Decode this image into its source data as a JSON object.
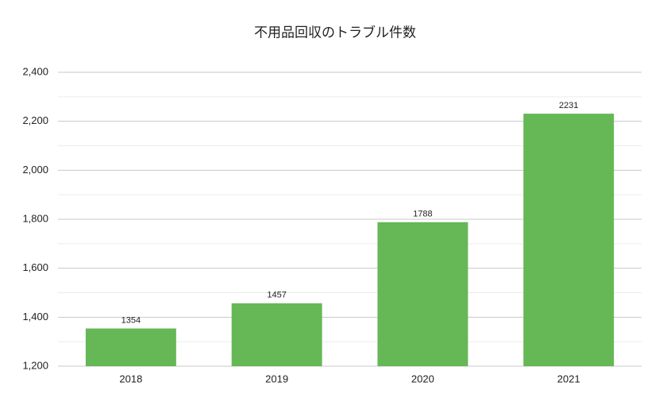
{
  "chart_data": {
    "type": "bar",
    "title": "不用品回収のトラブル件数",
    "categories": [
      "2018",
      "2019",
      "2020",
      "2021"
    ],
    "values": [
      1354,
      1457,
      1788,
      2231
    ],
    "color": "#66b755",
    "ylim": [
      1200,
      2400
    ],
    "yticks": [
      {
        "value": 1200,
        "label": "1,200"
      },
      {
        "value": 1400,
        "label": "1,400"
      },
      {
        "value": 1600,
        "label": "1,600"
      },
      {
        "value": 1800,
        "label": "1,800"
      },
      {
        "value": 2000,
        "label": "2,000"
      },
      {
        "value": 2200,
        "label": "2,200"
      },
      {
        "value": 2400,
        "label": "2,400"
      }
    ],
    "grid": true
  }
}
